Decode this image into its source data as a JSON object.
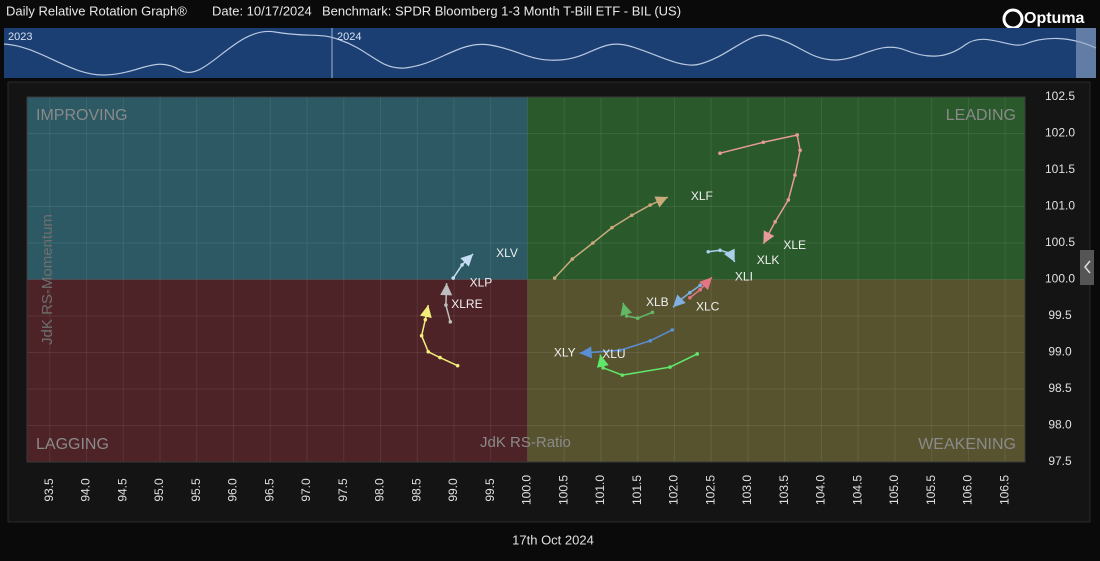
{
  "header": {
    "title": "Daily Relative Rotation Graph®",
    "date": "Date: 10/17/2024",
    "benchmark": "Benchmark: SPDR Bloomberg 1-3 Month T-Bill ETF - BIL (US)",
    "brand": "Optuma",
    "timeline_labels": [
      "2023",
      "2024"
    ]
  },
  "chart_data": {
    "type": "rrg",
    "x_label": "JdK RS-Ratio",
    "y_label": "JdK RS-Momentum",
    "footer": "17th Oct 2024",
    "quadrant_labels": [
      "IMPROVING",
      "LEADING",
      "LAGGING",
      "WEAKENING"
    ],
    "center": [
      100,
      100
    ],
    "xlim": [
      93.19,
      106.77
    ],
    "ylim": [
      97.5,
      102.5
    ],
    "xticks": [
      93.5,
      {
        "value": 94,
        "label": "94.0"
      },
      94.5,
      {
        "value": 95,
        "label": "95.0"
      },
      95.5,
      {
        "value": 96,
        "label": "96.0"
      },
      96.5,
      {
        "value": 97,
        "label": "97.0"
      },
      97.5,
      {
        "value": 98,
        "label": "98.0"
      },
      98.5,
      {
        "value": 99,
        "label": "99.0"
      },
      99.5,
      {
        "value": 100,
        "label": "100.0"
      },
      100.5,
      {
        "value": 101,
        "label": "101.0"
      },
      101.5,
      {
        "value": 102,
        "label": "102.0"
      },
      102.5,
      {
        "value": 103,
        "label": "103.0"
      },
      103.5,
      {
        "value": 104,
        "label": "104.0"
      },
      104.5,
      {
        "value": 105,
        "label": "105.0"
      },
      105.5,
      {
        "value": 106,
        "label": "106.0"
      },
      106.5
    ],
    "yticks": [
      97.5,
      {
        "value": 98,
        "label": "98.0"
      },
      98.5,
      {
        "value": 99,
        "label": "99.0"
      },
      99.5,
      {
        "value": 100,
        "label": "100.0"
      },
      100.5,
      {
        "value": 101,
        "label": "101.0"
      },
      101.5,
      {
        "value": 102,
        "label": "102.0"
      },
      102.5
    ],
    "grid": true,
    "series": [
      {
        "name": "XLF",
        "color": "#c9aa7a",
        "x": [
          100.37,
          100.61,
          100.89,
          101.15,
          101.42,
          101.67,
          101.91
        ],
        "values": [
          100.02,
          100.28,
          100.5,
          100.71,
          100.88,
          101.02,
          101.13
        ]
      },
      {
        "name": "XLE",
        "color": "#e89a9a",
        "x": [
          102.62,
          103.21,
          103.67,
          103.71,
          103.64,
          103.55,
          103.37,
          103.21
        ],
        "values": [
          101.73,
          101.88,
          101.98,
          101.77,
          101.43,
          101.09,
          100.79,
          100.49
        ]
      },
      {
        "name": "XLK",
        "color": "#a8d0ea",
        "x": [
          102.46,
          102.62,
          102.76,
          102.82
        ],
        "values": [
          100.38,
          100.4,
          100.36,
          100.24
        ]
      },
      {
        "name": "XLI",
        "color": "#e57585",
        "x": [
          102.21,
          102.35,
          102.51
        ],
        "values": [
          99.75,
          99.86,
          100.03
        ]
      },
      {
        "name": "XLC",
        "color": "#7fb0e0",
        "x": [
          102.35,
          102.21,
          102.08,
          101.98
        ],
        "values": [
          99.92,
          99.82,
          99.72,
          99.62
        ]
      },
      {
        "name": "XLB",
        "color": "#62b866",
        "x": [
          101.7,
          101.5,
          101.35,
          101.3
        ],
        "values": [
          99.55,
          99.47,
          99.5,
          99.68
        ]
      },
      {
        "name": "XLY",
        "color": "#5a8fd6",
        "x": [
          101.97,
          101.67,
          101.26,
          100.71
        ],
        "values": [
          99.31,
          99.16,
          99.03,
          98.99
        ]
      },
      {
        "name": "XLU",
        "color": "#5fe86a",
        "x": [
          102.31,
          101.94,
          101.29,
          101.03,
          100.99
        ],
        "values": [
          98.98,
          98.8,
          98.69,
          98.79,
          98.97
        ]
      },
      {
        "name": "XLV",
        "color": "#c4dcf2",
        "x": [
          98.99,
          99.11,
          99.26
        ],
        "values": [
          100.02,
          100.2,
          100.35
        ]
      },
      {
        "name": "XLP",
        "color": "#bdbdbd",
        "x": [
          98.95,
          98.89,
          98.9
        ],
        "values": [
          99.42,
          99.65,
          99.95
        ]
      },
      {
        "name": "XLRE",
        "color": "#f2ee7a",
        "x": [
          99.05,
          98.81,
          98.65,
          98.56,
          98.61,
          98.65
        ],
        "values": [
          98.82,
          98.93,
          99.01,
          99.23,
          99.45,
          99.65
        ]
      }
    ]
  }
}
